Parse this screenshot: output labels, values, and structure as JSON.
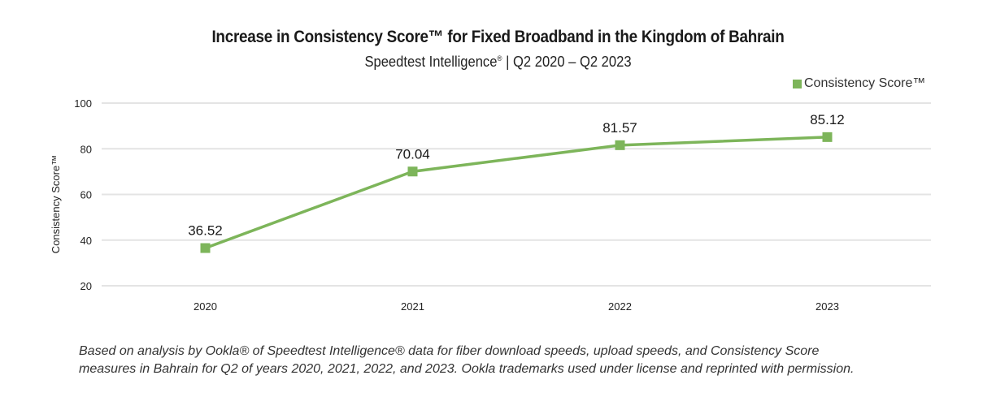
{
  "chart_data": {
    "type": "line",
    "title": "Increase in Consistency Score™ for Fixed Broadband in the Kingdom of Bahrain",
    "subtitle": "Speedtest Intelligence® | Q2 2020 – Q2 2023",
    "categories": [
      "2020",
      "2021",
      "2022",
      "2023"
    ],
    "series": [
      {
        "name": "Consistency Score™",
        "values": [
          36.52,
          70.04,
          81.57,
          85.12
        ],
        "color": "#7db55a"
      }
    ],
    "data_labels": [
      "36.52",
      "70.04",
      "81.57",
      "85.12"
    ],
    "xlabel": "",
    "ylabel": "Consistency Score™",
    "ylim": [
      20,
      100
    ],
    "yticks": [
      20,
      40,
      60,
      80,
      100
    ],
    "ytick_labels": [
      "20",
      "40",
      "60",
      "80",
      "100"
    ],
    "grid": true,
    "legend": {
      "position": "top-right",
      "entries": [
        "Consistency Score™"
      ]
    }
  },
  "header": {
    "title": "Increase in Consistency Score™ for Fixed Broadband in the Kingdom of Bahrain",
    "subtitle_main": "Speedtest Intelligence",
    "subtitle_mark": "®",
    "subtitle_rest": " | Q2 2020 – Q2 2023"
  },
  "legend": {
    "label": "Consistency Score™",
    "color": "#7db55a"
  },
  "footnote": {
    "line1": "Based on analysis by Ookla® of Speedtest Intelligence® data for fiber download speeds, upload speeds, and Consistency Score",
    "line2": "measures in Bahrain for Q2 of years 2020, 2021, 2022, and 2023. Ookla trademarks used under license and reprinted with permission."
  },
  "colors": {
    "line": "#7db55a",
    "grid": "#e4e4e4"
  }
}
